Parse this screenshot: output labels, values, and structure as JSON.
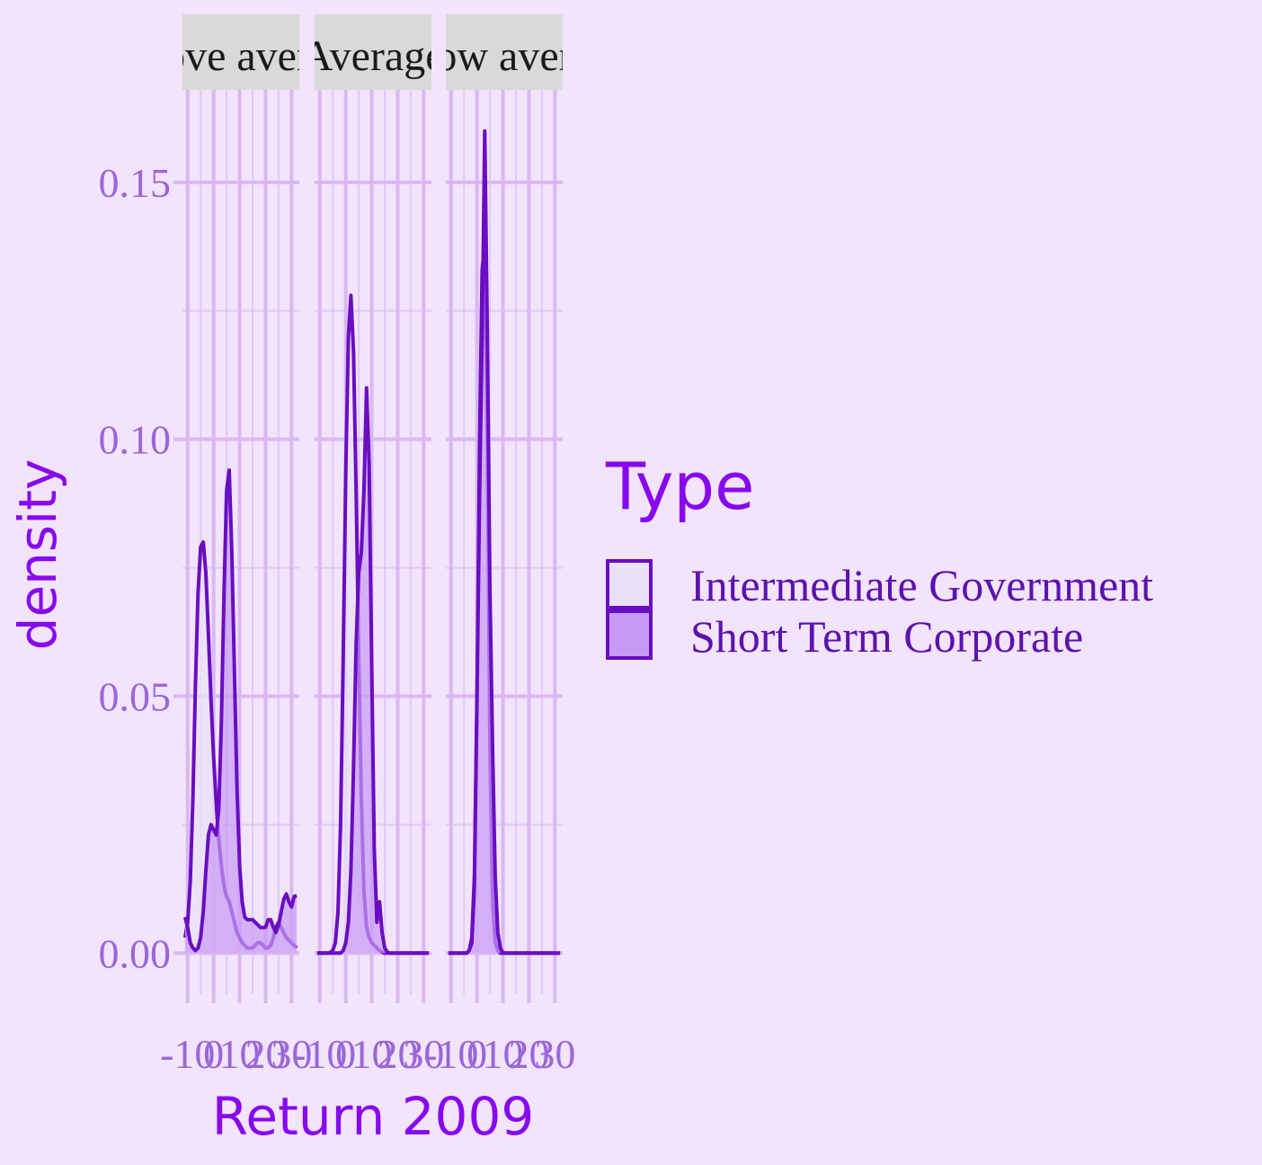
{
  "chart_data": {
    "type": "area",
    "title": "",
    "xlabel": "Return 2009",
    "ylabel": "density",
    "xlim": [
      -12,
      33
    ],
    "ylim": [
      -0.008,
      0.168
    ],
    "x_ticks": [
      -10,
      0,
      10,
      20,
      30
    ],
    "x_tick_labels": [
      "-10",
      "0",
      "10",
      "20",
      "30"
    ],
    "y_ticks": [
      0.0,
      0.05,
      0.1,
      0.15
    ],
    "y_tick_labels": [
      "0.00",
      "0.05",
      "0.10",
      "0.15"
    ],
    "grid": true,
    "legend": {
      "title": "Type",
      "placement": "right",
      "entries": [
        "Intermediate Government",
        "Short Term Corporate"
      ]
    },
    "colors": {
      "background": "#F2E4FC",
      "grid": "#D9B8F2",
      "strip_bg": "#D9D9D9",
      "line": "#6A0DC2",
      "fill_intermediate": "#E9E1F7",
      "fill_short_term": "#C89AF5",
      "tick_text": "#9A67D8",
      "title_text": "#8708F0"
    },
    "facets": [
      {
        "label": "Above average",
        "series": [
          {
            "name": "Intermediate Government",
            "x": [
              -11,
              -10,
              -9,
              -8,
              -7,
              -6,
              -5,
              -4,
              -3,
              -2,
              -1,
              0,
              1,
              2,
              3,
              4,
              5,
              6,
              7,
              8,
              9,
              10,
              11,
              12,
              13,
              14,
              15,
              16,
              17,
              18,
              19,
              20,
              21,
              22,
              23,
              24,
              25,
              26,
              27,
              28,
              29,
              30,
              31,
              32
            ],
            "y": [
              0.003,
              0.006,
              0.014,
              0.03,
              0.052,
              0.07,
              0.079,
              0.08,
              0.074,
              0.062,
              0.049,
              0.038,
              0.029,
              0.022,
              0.017,
              0.013,
              0.011,
              0.01,
              0.008,
              0.006,
              0.004,
              0.003,
              0.002,
              0.0015,
              0.001,
              0.001,
              0.001,
              0.0015,
              0.002,
              0.002,
              0.0015,
              0.001,
              0.001,
              0.0015,
              0.003,
              0.005,
              0.006,
              0.005,
              0.004,
              0.003,
              0.0025,
              0.002,
              0.0015,
              0.001
            ]
          },
          {
            "name": "Short Term Corporate",
            "x": [
              -11,
              -10,
              -9,
              -8,
              -7,
              -6,
              -5,
              -4,
              -3,
              -2,
              -1,
              0,
              1,
              2,
              3,
              4,
              5,
              6,
              7,
              8,
              9,
              10,
              11,
              12,
              13,
              14,
              15,
              16,
              17,
              18,
              19,
              20,
              21,
              22,
              23,
              24,
              25,
              26,
              27,
              28,
              29,
              30,
              31,
              32
            ],
            "y": [
              0.007,
              0.005,
              0.002,
              0.001,
              0.0005,
              0.001,
              0.003,
              0.008,
              0.016,
              0.023,
              0.025,
              0.024,
              0.023,
              0.028,
              0.045,
              0.07,
              0.09,
              0.094,
              0.078,
              0.055,
              0.032,
              0.017,
              0.01,
              0.007,
              0.0065,
              0.0065,
              0.0065,
              0.006,
              0.0055,
              0.005,
              0.005,
              0.005,
              0.0065,
              0.0065,
              0.005,
              0.004,
              0.0055,
              0.008,
              0.0105,
              0.0115,
              0.01,
              0.009,
              0.011,
              0.0112
            ]
          }
        ]
      },
      {
        "label": "Average",
        "series": [
          {
            "name": "Intermediate Government",
            "x": [
              -11,
              -10,
              -9,
              -8,
              -7,
              -6,
              -5,
              -4,
              -3,
              -2,
              -1,
              0,
              1,
              2,
              3,
              4,
              5,
              6,
              7,
              8,
              9,
              10,
              11,
              12,
              13,
              14,
              15,
              16,
              17,
              18,
              19,
              20,
              21,
              22,
              23,
              24,
              25,
              26,
              27,
              28,
              29,
              30,
              31,
              32
            ],
            "y": [
              0.0,
              0.0,
              0.0,
              0.0,
              0.0,
              0.0001,
              0.0005,
              0.002,
              0.008,
              0.025,
              0.057,
              0.094,
              0.12,
              0.128,
              0.117,
              0.09,
              0.058,
              0.03,
              0.012,
              0.005,
              0.003,
              0.002,
              0.0015,
              0.001,
              0.0005,
              0.0002,
              0.0,
              0.0,
              0.0,
              0.0,
              0.0,
              0.0,
              0.0,
              0.0,
              0.0,
              0.0,
              0.0,
              0.0,
              0.0,
              0.0,
              0.0,
              0.0,
              0.0,
              0.0
            ]
          },
          {
            "name": "Short Term Corporate",
            "x": [
              -11,
              -10,
              -9,
              -8,
              -7,
              -6,
              -5,
              -4,
              -3,
              -2,
              -1,
              0,
              1,
              2,
              3,
              4,
              5,
              6,
              7,
              8,
              9,
              10,
              11,
              12,
              13,
              14,
              15,
              16,
              17,
              18,
              19,
              20,
              21,
              22,
              23,
              24,
              25,
              26,
              27,
              28,
              29,
              30,
              31,
              32
            ],
            "y": [
              0.0,
              0.0,
              0.0,
              0.0,
              0.0,
              0.0,
              0.0,
              0.0,
              0.0,
              0.0,
              0.0005,
              0.002,
              0.006,
              0.016,
              0.036,
              0.06,
              0.074,
              0.078,
              0.09,
              0.11,
              0.095,
              0.055,
              0.02,
              0.006,
              0.01,
              0.004,
              0.001,
              0.0002,
              0.0,
              0.0,
              0.0,
              0.0,
              0.0,
              0.0,
              0.0,
              0.0,
              0.0,
              0.0,
              0.0,
              0.0,
              0.0,
              0.0,
              0.0,
              0.0
            ]
          }
        ]
      },
      {
        "label": "Below average",
        "series": [
          {
            "name": "Intermediate Government",
            "x": [
              -11,
              -10,
              -9,
              -8,
              -7,
              -6,
              -5,
              -4,
              -3,
              -2,
              -1,
              0,
              1,
              2,
              3,
              4,
              5,
              6,
              7,
              8,
              9,
              10,
              11,
              12,
              13,
              14,
              15,
              16,
              17,
              18,
              19,
              20,
              21,
              22,
              23,
              24,
              25,
              26,
              27,
              28,
              29,
              30,
              31,
              32
            ],
            "y": [
              0.0,
              0.0,
              0.0,
              0.0,
              0.0,
              0.0,
              0.0,
              0.0,
              0.0005,
              0.003,
              0.015,
              0.05,
              0.1,
              0.133,
              0.138,
              0.1,
              0.04,
              0.01,
              0.002,
              0.0005,
              0.0,
              0.0,
              0.0,
              0.0,
              0.0,
              0.0,
              0.0,
              0.0,
              0.0,
              0.0,
              0.0,
              0.0,
              0.0,
              0.0,
              0.0,
              0.0,
              0.0,
              0.0,
              0.0,
              0.0,
              0.0,
              0.0,
              0.0,
              0.0
            ]
          },
          {
            "name": "Short Term Corporate",
            "x": [
              -11,
              -10,
              -9,
              -8,
              -7,
              -6,
              -5,
              -4,
              -3,
              -2,
              -1,
              0,
              1,
              2,
              3,
              4,
              5,
              6,
              7,
              8,
              9,
              10,
              11,
              12,
              13,
              14,
              15,
              16,
              17,
              18,
              19,
              20,
              21,
              22,
              23,
              24,
              25,
              26,
              27,
              28,
              29,
              30,
              31,
              32
            ],
            "y": [
              0.0,
              0.0,
              0.0,
              0.0,
              0.0,
              0.0,
              0.0,
              0.0,
              0.0005,
              0.002,
              0.013,
              0.05,
              0.09,
              0.12,
              0.16,
              0.12,
              0.07,
              0.04,
              0.015,
              0.004,
              0.001,
              0.0,
              0.0,
              0.0,
              0.0,
              0.0,
              0.0,
              0.0,
              0.0,
              0.0,
              0.0,
              0.0,
              0.0,
              0.0,
              0.0,
              0.0,
              0.0,
              0.0,
              0.0,
              0.0,
              0.0,
              0.0,
              0.0,
              0.0
            ]
          }
        ]
      }
    ]
  }
}
